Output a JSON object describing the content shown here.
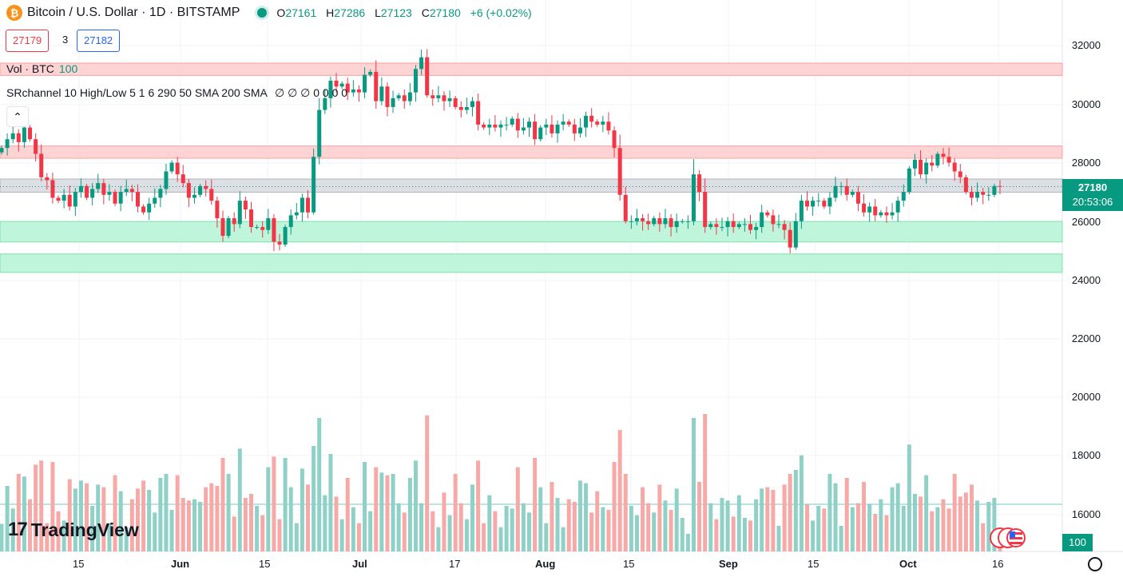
{
  "header": {
    "symbol_title": "Bitcoin / U.S. Dollar · 1D · BITSTAMP",
    "symbol_icon": "bitcoin-icon",
    "open_label": "O",
    "open": "27161",
    "high_label": "H",
    "high": "27286",
    "low_label": "L",
    "low": "27123",
    "close_label": "C",
    "close": "27180",
    "change": "+6 (+0.02%)"
  },
  "trade": {
    "bid": "27179",
    "spread": "3",
    "ask": "27182"
  },
  "indicators": {
    "volume_label": "Vol · BTC",
    "volume_value": "100",
    "srchannel_label": "SRchannel 10 High/Low 5 1 6 290 50 SMA 200 SMA",
    "srchannel_values": "∅ ∅ ∅ 0 0 0 0"
  },
  "price_axis": {
    "ticks": [
      "32000",
      "30000",
      "28000",
      "26000",
      "24000",
      "22000",
      "20000",
      "18000",
      "16000"
    ],
    "current_price": "27180",
    "countdown": "20:53:06",
    "volume_tag": "100"
  },
  "time_axis": {
    "labels": [
      "15",
      "Jun",
      "15",
      "Jul",
      "17",
      "Aug",
      "15",
      "Sep",
      "15",
      "Oct",
      "16"
    ],
    "bold": [
      "Jun",
      "Jul",
      "Aug",
      "Sep",
      "Oct"
    ]
  },
  "branding": {
    "logo": "TradingView"
  },
  "colors": {
    "up": "#089981",
    "down": "#f23645",
    "resistance_zone": "#fdd3d3",
    "support_zone": "#bff5da",
    "neutral_zone": "#dcdfe4"
  },
  "chart_data": {
    "type": "candlestick",
    "title": "Bitcoin / U.S. Dollar · 1D · BITSTAMP",
    "ylim": [
      24000,
      32000
    ],
    "zones": [
      {
        "kind": "resistance",
        "low": 30980,
        "high": 31400
      },
      {
        "kind": "resistance",
        "low": 28150,
        "high": 28570
      },
      {
        "kind": "neutral",
        "low": 26990,
        "high": 27440
      },
      {
        "kind": "support",
        "low": 25290,
        "high": 25990
      },
      {
        "kind": "support",
        "low": 24250,
        "high": 24880
      }
    ],
    "closes": [
      28500,
      28800,
      29000,
      28700,
      29200,
      28800,
      28300,
      27500,
      27400,
      26800,
      26700,
      26900,
      26500,
      27000,
      27200,
      26800,
      27100,
      27300,
      26900,
      27000,
      26600,
      27000,
      27100,
      27000,
      26500,
      26300,
      26600,
      26800,
      27100,
      27700,
      28000,
      27600,
      27300,
      26800,
      26900,
      27200,
      27100,
      26700,
      26100,
      25500,
      26100,
      25900,
      26700,
      26400,
      25800,
      25800,
      25700,
      26100,
      25300,
      25200,
      25800,
      26200,
      26300,
      26800,
      26300,
      28200,
      29800,
      30200,
      30800,
      30600,
      30700,
      30400,
      30500,
      30400,
      31000,
      31100,
      30100,
      30600,
      29900,
      30200,
      30300,
      30100,
      30400,
      31200,
      31600,
      30300,
      30200,
      30300,
      30100,
      30200,
      29900,
      29800,
      29900,
      30100,
      29300,
      29200,
      29300,
      29200,
      29300,
      29300,
      29500,
      29100,
      29200,
      29400,
      28800,
      29200,
      29300,
      29000,
      29300,
      29400,
      29300,
      29000,
      29200,
      29600,
      29400,
      29300,
      29400,
      29100,
      28500,
      26900,
      26000,
      26000,
      26100,
      26000,
      25900,
      26100,
      25900,
      26100,
      25800,
      26000,
      26000,
      26000,
      27600,
      27000,
      25800,
      25900,
      25800,
      25800,
      26000,
      25800,
      25900,
      25900,
      25700,
      25800,
      26300,
      26200,
      25900,
      25900,
      25700,
      25100,
      26000,
      26700,
      26500,
      26700,
      26700,
      26500,
      26800,
      27200,
      27200,
      26900,
      27000,
      26600,
      26300,
      26500,
      26200,
      26300,
      26200,
      26300,
      26700,
      27000,
      27800,
      28100,
      27600,
      28000,
      27900,
      28300,
      28200,
      28000,
      27700,
      27500,
      27000,
      26800,
      27000,
      26900,
      26900,
      27200,
      27180
    ],
    "volume_scale_label": "100"
  }
}
